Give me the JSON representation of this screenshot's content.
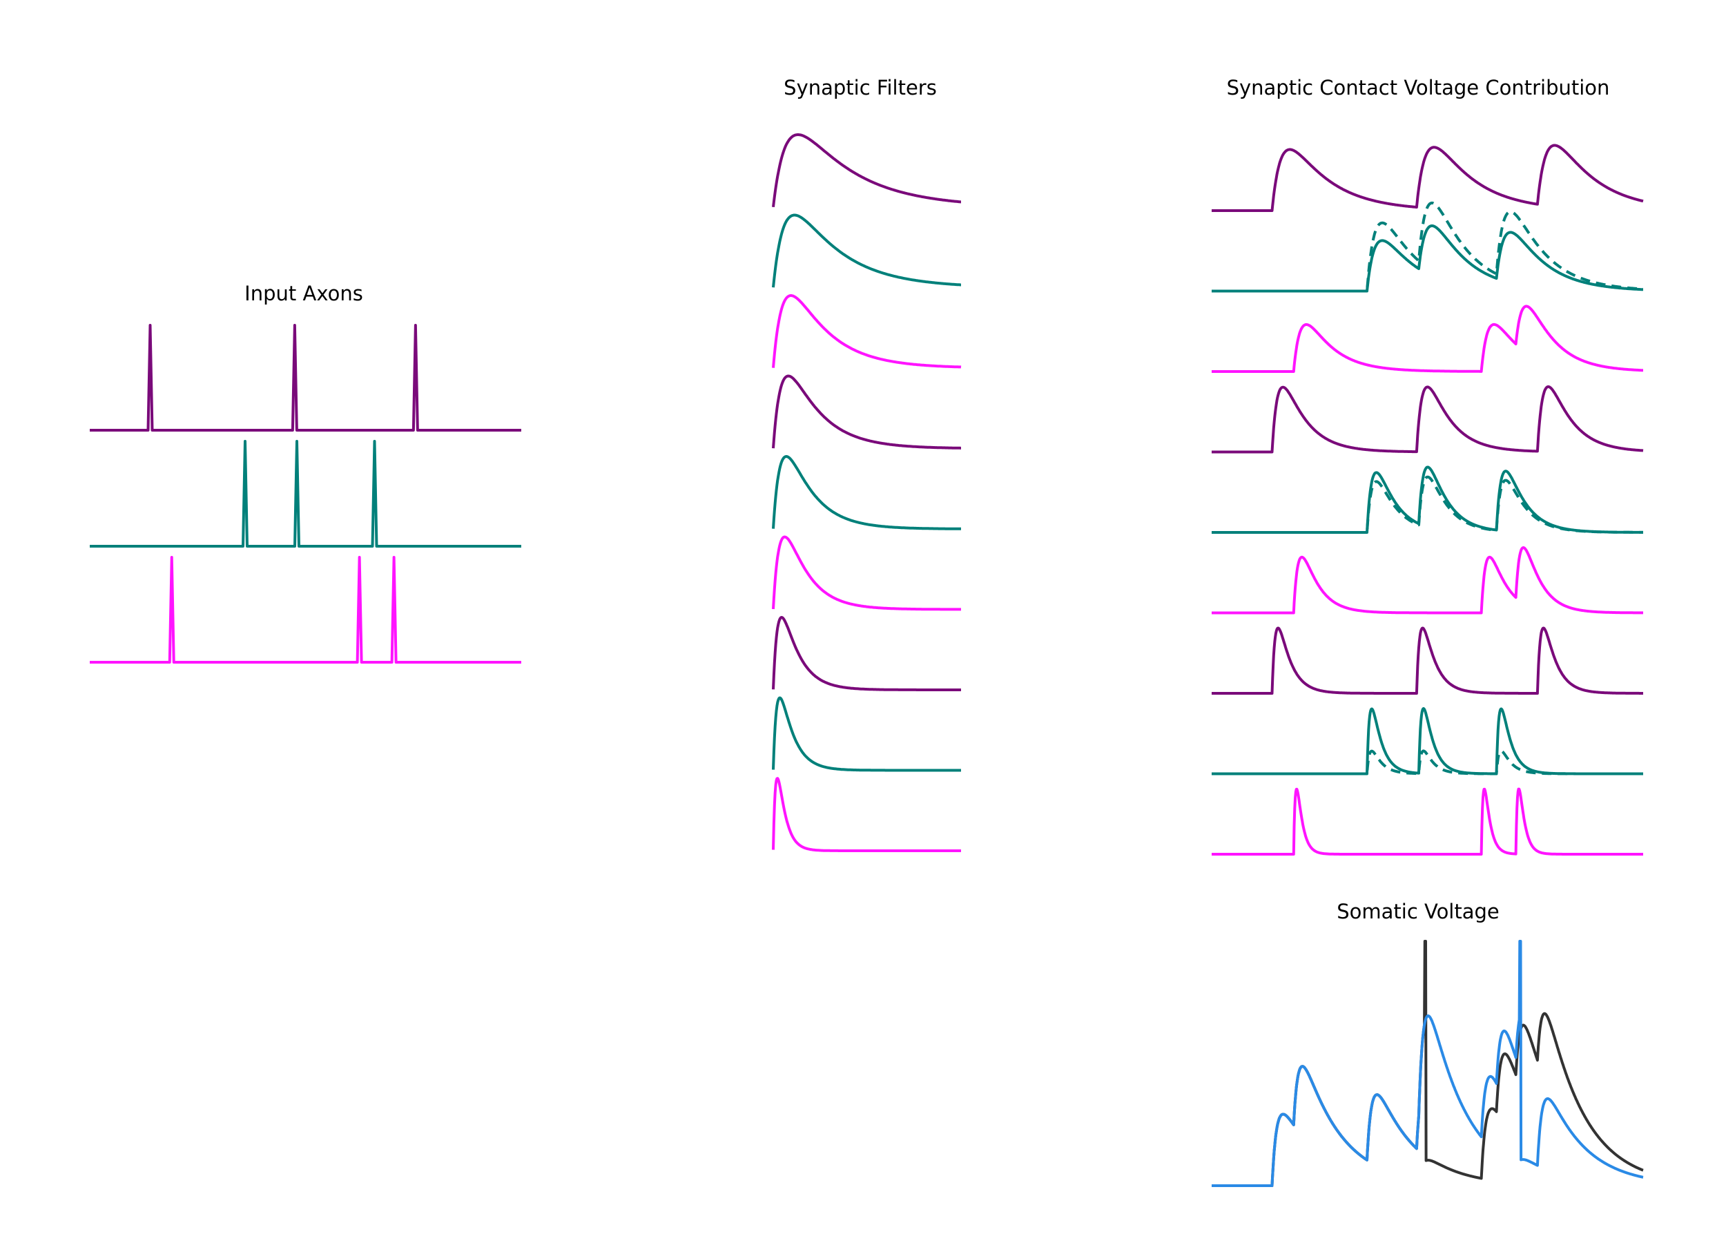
{
  "titles": {
    "input_axons": "Input Axons",
    "synaptic_filters": "Synaptic Filters",
    "contact_voltage": "Synaptic Contact Voltage Contribution",
    "somatic_voltage": "Somatic Voltage"
  },
  "colors": {
    "axon_1": "#7a0a7a",
    "axon_2": "#00807a",
    "axon_3": "#ff14ff",
    "soma_dark": "#333333",
    "soma_blue": "#2a8ae6"
  },
  "chart_data": {
    "type": "line",
    "time_range": [
      0,
      1
    ],
    "input_axons": [
      {
        "color_key": "axon_1",
        "spike_times": [
          0.14,
          0.475,
          0.755
        ]
      },
      {
        "color_key": "axon_2",
        "spike_times": [
          0.36,
          0.48,
          0.66
        ]
      },
      {
        "color_key": "axon_3",
        "spike_times": [
          0.19,
          0.625,
          0.705
        ]
      }
    ],
    "filter_rows_per_axon": 3,
    "synaptic_filters": [
      {
        "axon": 0,
        "rise": 0.09,
        "decay": 0.3
      },
      {
        "axon": 1,
        "rise": 0.08,
        "decay": 0.25
      },
      {
        "axon": 2,
        "rise": 0.07,
        "decay": 0.2
      },
      {
        "axon": 0,
        "rise": 0.06,
        "decay": 0.17
      },
      {
        "axon": 1,
        "rise": 0.055,
        "decay": 0.14
      },
      {
        "axon": 2,
        "rise": 0.05,
        "decay": 0.12
      },
      {
        "axon": 0,
        "rise": 0.035,
        "decay": 0.09
      },
      {
        "axon": 1,
        "rise": 0.028,
        "decay": 0.07
      },
      {
        "axon": 2,
        "rise": 0.02,
        "decay": 0.04
      }
    ],
    "somatic_voltage": {
      "series": [
        {
          "color_key": "soma_dark",
          "spike_times": [
            0.495
          ]
        },
        {
          "color_key": "soma_blue",
          "spike_times": [
            0.715
          ]
        }
      ]
    }
  }
}
